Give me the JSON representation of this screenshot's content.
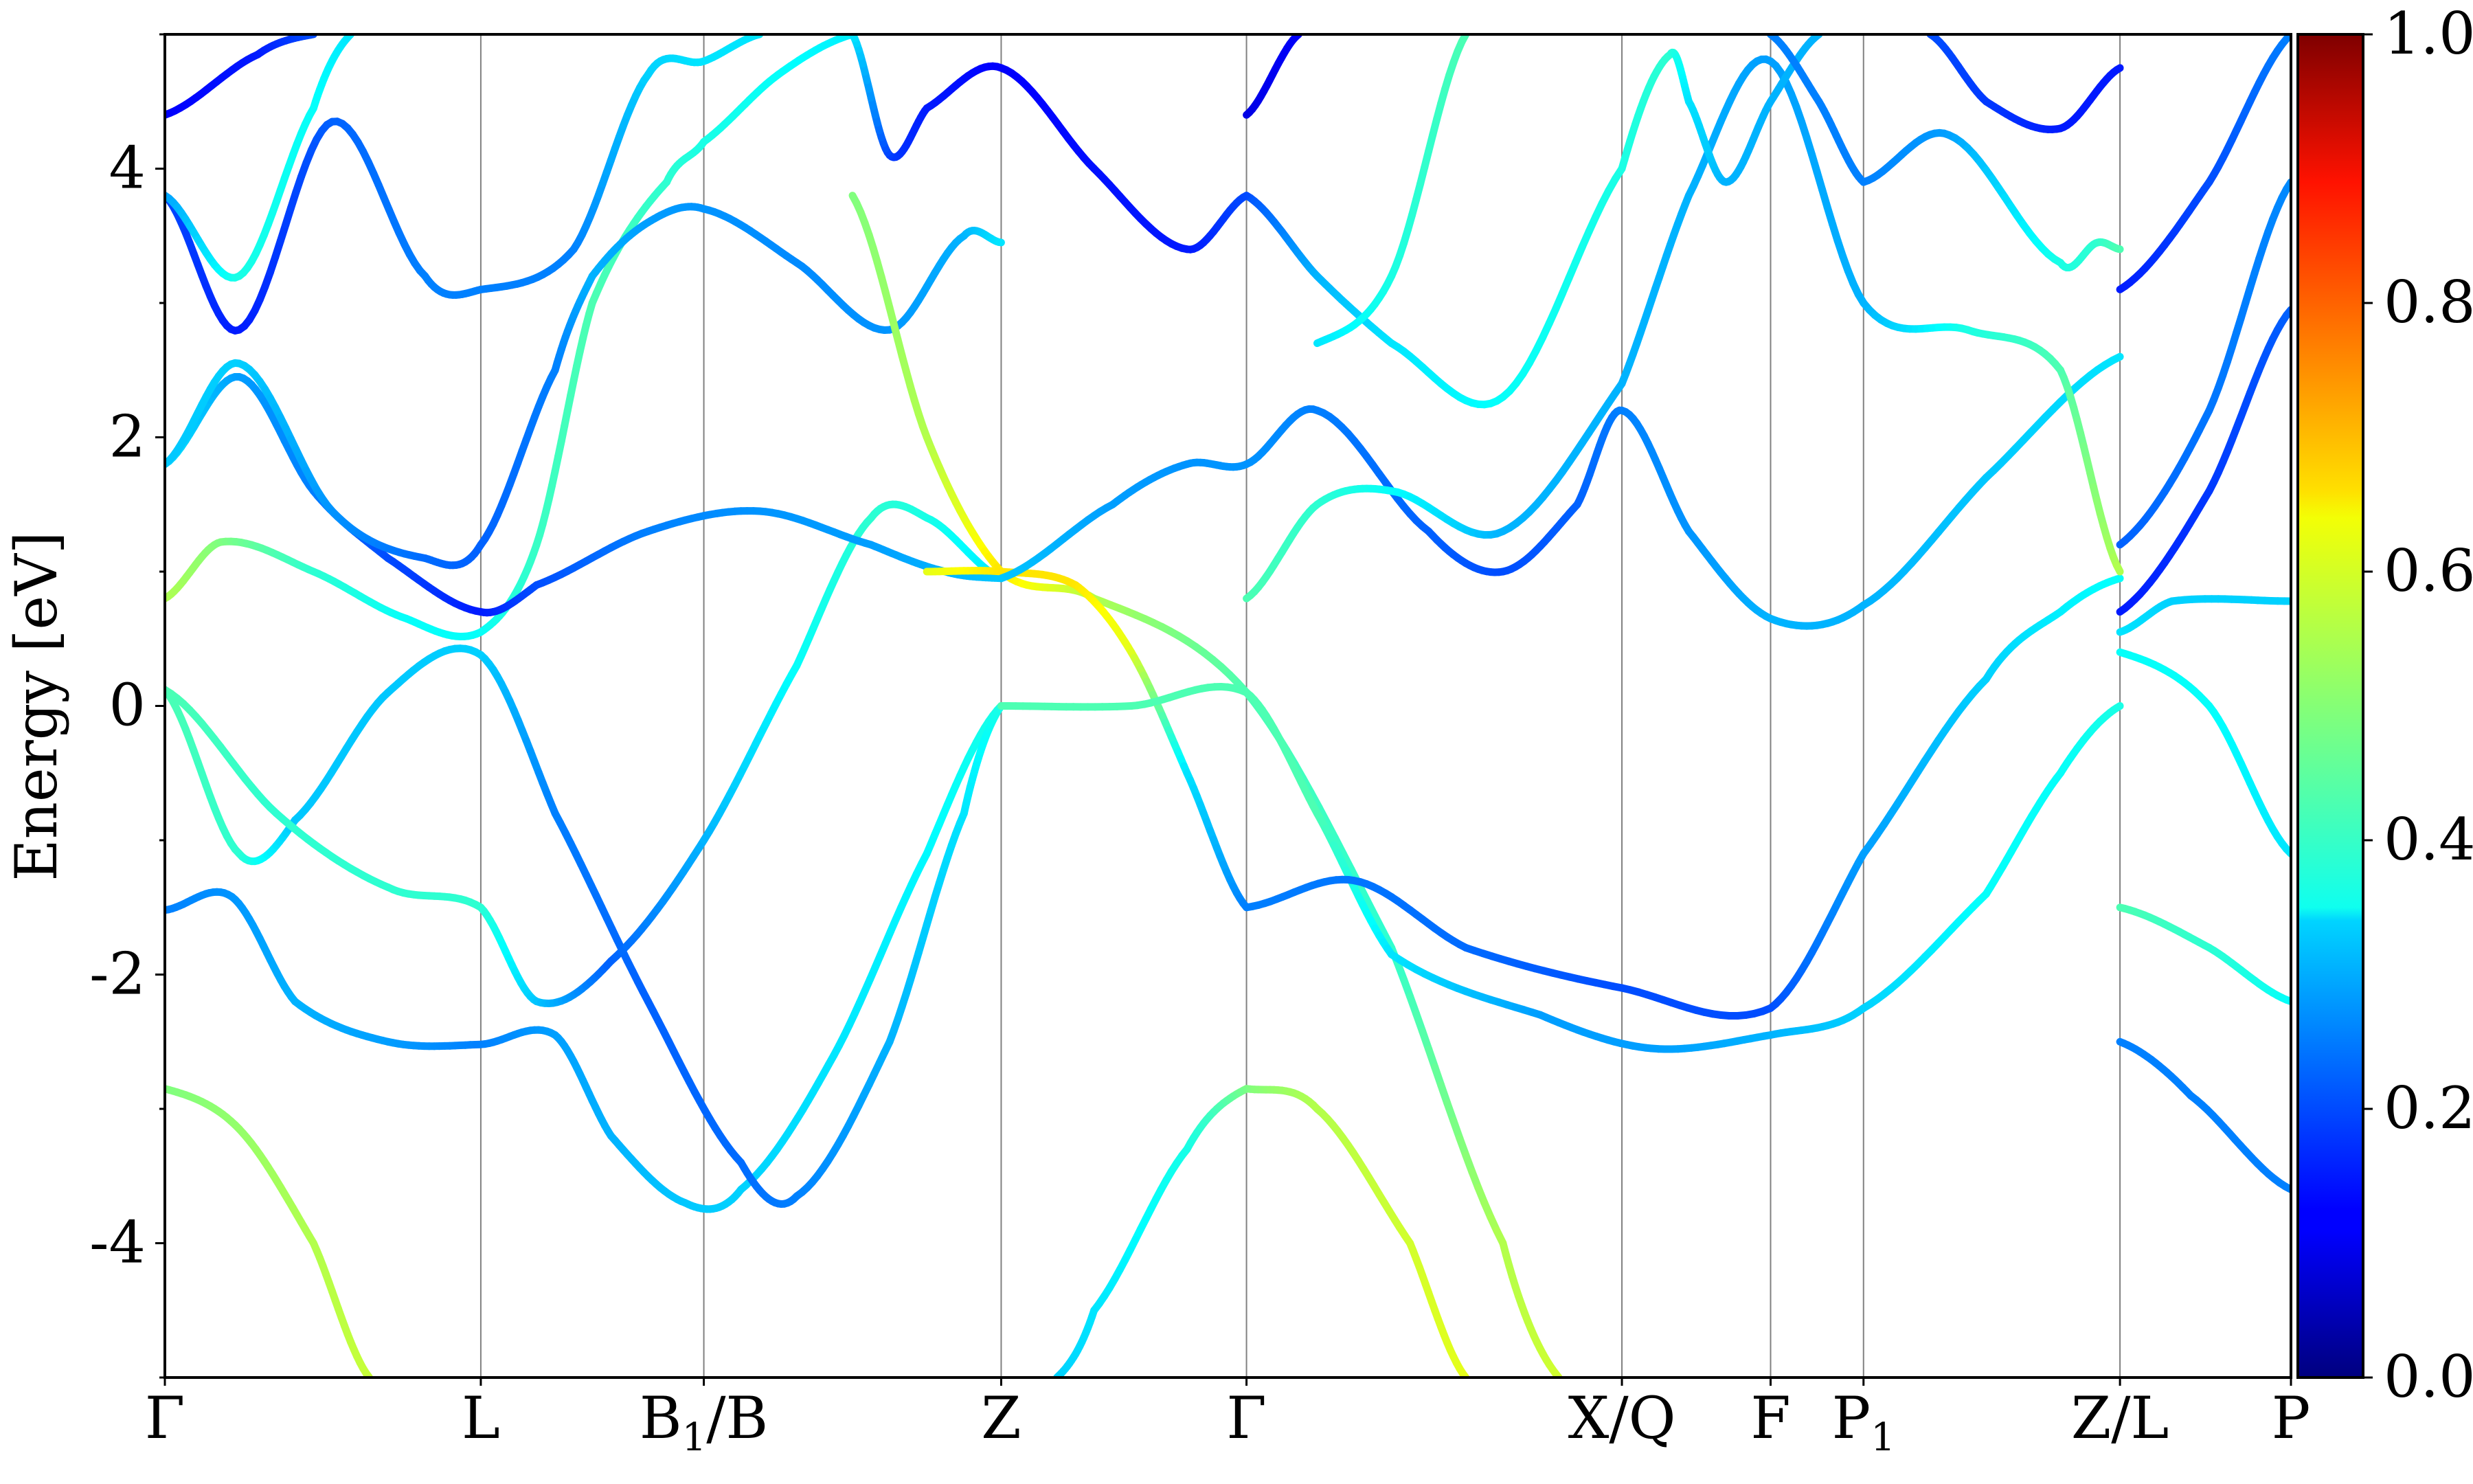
{
  "chart_data": {
    "type": "line",
    "title": "",
    "xlabel": "",
    "ylabel": "Energy [eV]",
    "ylim": [
      -5,
      5
    ],
    "y_ticks": [
      -4,
      -2,
      0,
      2,
      4
    ],
    "y_tick_labels": [
      "-4",
      "-2",
      "0",
      "2",
      "4"
    ],
    "grid": "vertical lines at high-symmetry points",
    "x_range": [
      0,
      5.72
    ],
    "k_points": [
      {
        "label": "Γ",
        "sub": "",
        "suffix": "",
        "x": 0.0
      },
      {
        "label": "L",
        "sub": "",
        "suffix": "",
        "x": 0.85
      },
      {
        "label": "B",
        "sub": "1",
        "suffix": "/B",
        "x": 1.45
      },
      {
        "label": "Z",
        "sub": "",
        "suffix": "",
        "x": 2.25
      },
      {
        "label": "Γ",
        "sub": "",
        "suffix": "",
        "x": 2.91
      },
      {
        "label": "X/Q",
        "sub": "",
        "suffix": "",
        "x": 3.92
      },
      {
        "label": "F",
        "sub": "",
        "suffix": "",
        "x": 4.32
      },
      {
        "label": "P",
        "sub": "1",
        "suffix": "",
        "x": 4.57
      },
      {
        "label": "Z/L",
        "sub": "",
        "suffix": "",
        "x": 5.26
      },
      {
        "label": "P",
        "sub": "",
        "suffix": "",
        "x": 5.72
      }
    ],
    "colorbar": {
      "colormap": "jet",
      "range": [
        0.0,
        1.0
      ],
      "ticks": [
        0.0,
        0.2,
        0.4,
        0.6,
        0.8,
        1.0
      ],
      "tick_labels": [
        "0.0",
        "0.2",
        "0.4",
        "0.6",
        "0.8",
        "1.0"
      ]
    },
    "series": [
      {
        "points": [
          [
            0.0,
            -2.85,
            0.5
          ],
          [
            0.2,
            -3.15,
            0.52
          ],
          [
            0.4,
            -4.0,
            0.55
          ],
          [
            0.55,
            -5.0,
            0.57
          ]
        ]
      },
      {
        "points": [
          [
            0.0,
            -1.52,
            0.25
          ],
          [
            0.18,
            -1.42,
            0.27
          ],
          [
            0.35,
            -2.2,
            0.3
          ],
          [
            0.6,
            -2.5,
            0.28
          ],
          [
            0.85,
            -2.52,
            0.25
          ],
          [
            1.05,
            -2.45,
            0.28
          ],
          [
            1.2,
            -3.2,
            0.3
          ],
          [
            1.4,
            -3.7,
            0.32
          ],
          [
            1.55,
            -3.6,
            0.33
          ],
          [
            1.8,
            -2.6,
            0.35
          ],
          [
            2.05,
            -1.1,
            0.37
          ],
          [
            2.25,
            0.0,
            0.4
          ]
        ]
      },
      {
        "points": [
          [
            0.0,
            0.12,
            0.45
          ],
          [
            0.2,
            -1.1,
            0.42
          ],
          [
            0.35,
            -0.85,
            0.32
          ],
          [
            0.6,
            0.1,
            0.32
          ],
          [
            0.85,
            0.38,
            0.33
          ],
          [
            1.05,
            -0.8,
            0.25
          ],
          [
            1.3,
            -2.2,
            0.22
          ],
          [
            1.55,
            -3.4,
            0.23
          ],
          [
            1.7,
            -3.65,
            0.25
          ],
          [
            1.95,
            -2.5,
            0.3
          ],
          [
            2.15,
            -0.8,
            0.35
          ],
          [
            2.25,
            0.0,
            0.4
          ]
        ]
      },
      {
        "points": [
          [
            0.0,
            0.12,
            0.45
          ],
          [
            0.3,
            -0.8,
            0.42
          ],
          [
            0.6,
            -1.35,
            0.42
          ],
          [
            0.85,
            -1.5,
            0.42
          ],
          [
            1.0,
            -2.2,
            0.32
          ],
          [
            1.2,
            -1.9,
            0.22
          ],
          [
            1.45,
            -1.0,
            0.3
          ],
          [
            1.7,
            0.3,
            0.38
          ],
          [
            1.9,
            1.4,
            0.42
          ],
          [
            2.05,
            1.4,
            0.4
          ],
          [
            2.25,
            0.95,
            0.35
          ]
        ]
      },
      {
        "points": [
          [
            0.0,
            0.8,
            0.55
          ],
          [
            0.15,
            1.22,
            0.5
          ],
          [
            0.4,
            1.0,
            0.42
          ],
          [
            0.65,
            0.65,
            0.38
          ],
          [
            0.85,
            0.55,
            0.38
          ],
          [
            1.0,
            1.2,
            0.43
          ],
          [
            1.15,
            3.0,
            0.45
          ],
          [
            1.35,
            3.9,
            0.42
          ],
          [
            1.45,
            4.2,
            0.4
          ],
          [
            1.65,
            4.7,
            0.38
          ],
          [
            1.85,
            5.0,
            0.36
          ]
        ]
      },
      {
        "points": [
          [
            0.0,
            1.8,
            0.35
          ],
          [
            0.2,
            2.45,
            0.28
          ],
          [
            0.4,
            1.6,
            0.25
          ],
          [
            0.6,
            1.1,
            0.2
          ],
          [
            0.85,
            0.7,
            0.15
          ],
          [
            1.0,
            0.9,
            0.2
          ],
          [
            1.3,
            1.3,
            0.25
          ],
          [
            1.6,
            1.45,
            0.27
          ],
          [
            1.9,
            1.2,
            0.28
          ],
          [
            2.1,
            1.0,
            0.3
          ],
          [
            2.25,
            0.95,
            0.32
          ]
        ]
      },
      {
        "points": [
          [
            0.0,
            1.8,
            0.32
          ],
          [
            0.2,
            2.55,
            0.33
          ],
          [
            0.45,
            1.45,
            0.27
          ],
          [
            0.7,
            1.1,
            0.23
          ],
          [
            0.85,
            1.2,
            0.22
          ],
          [
            1.05,
            2.5,
            0.25
          ],
          [
            1.15,
            3.2,
            0.3
          ],
          [
            1.3,
            3.6,
            0.28
          ],
          [
            1.45,
            3.7,
            0.27
          ],
          [
            1.7,
            3.3,
            0.26
          ],
          [
            1.95,
            2.8,
            0.27
          ],
          [
            2.15,
            3.5,
            0.3
          ],
          [
            2.25,
            3.45,
            0.35
          ]
        ]
      },
      {
        "points": [
          [
            0.0,
            3.8,
            0.2
          ],
          [
            0.2,
            2.8,
            0.15
          ],
          [
            0.45,
            4.35,
            0.22
          ],
          [
            0.7,
            3.2,
            0.25
          ],
          [
            0.85,
            3.1,
            0.25
          ],
          [
            1.1,
            3.4,
            0.25
          ],
          [
            1.3,
            4.7,
            0.33
          ],
          [
            1.45,
            4.8,
            0.35
          ],
          [
            1.6,
            5.0,
            0.35
          ]
        ]
      },
      {
        "points": [
          [
            0.0,
            3.8,
            0.28
          ],
          [
            0.2,
            3.2,
            0.4
          ],
          [
            0.4,
            4.45,
            0.38
          ],
          [
            0.5,
            5.0,
            0.35
          ]
        ]
      },
      {
        "points": [
          [
            0.0,
            4.4,
            0.12
          ],
          [
            0.25,
            4.85,
            0.15
          ],
          [
            0.4,
            5.0,
            0.2
          ]
        ]
      },
      {
        "points": [
          [
            1.85,
            3.8,
            0.5
          ],
          [
            2.05,
            2.0,
            0.55
          ],
          [
            2.25,
            1.0,
            0.65
          ],
          [
            2.5,
            0.8,
            0.55
          ],
          [
            2.91,
            0.1,
            0.45
          ],
          [
            3.3,
            -1.8,
            0.42
          ],
          [
            3.6,
            -4.0,
            0.55
          ],
          [
            3.75,
            -5.0,
            0.58
          ]
        ]
      },
      {
        "points": [
          [
            2.05,
            1.0,
            0.6
          ],
          [
            2.25,
            1.0,
            0.65
          ],
          [
            2.45,
            0.9,
            0.65
          ],
          [
            2.6,
            0.4,
            0.6
          ],
          [
            2.75,
            -0.5,
            0.35
          ],
          [
            2.91,
            -1.5,
            0.25
          ]
        ]
      },
      {
        "points": [
          [
            2.25,
            0.0,
            0.45
          ],
          [
            2.6,
            0.0,
            0.45
          ],
          [
            2.91,
            0.1,
            0.45
          ],
          [
            3.1,
            -0.8,
            0.45
          ],
          [
            3.3,
            -1.85,
            0.35
          ],
          [
            3.7,
            -2.3,
            0.28
          ],
          [
            4.0,
            -2.55,
            0.28
          ],
          [
            4.32,
            -2.45,
            0.3
          ],
          [
            4.57,
            -2.25,
            0.33
          ],
          [
            4.9,
            -1.4,
            0.38
          ],
          [
            5.1,
            -0.5,
            0.38
          ],
          [
            5.26,
            0.0,
            0.4
          ]
        ]
      },
      {
        "points": [
          [
            2.91,
            -1.5,
            0.25
          ],
          [
            3.2,
            -1.3,
            0.24
          ],
          [
            3.5,
            -1.8,
            0.23
          ],
          [
            3.92,
            -2.1,
            0.2
          ],
          [
            4.32,
            -2.25,
            0.2
          ],
          [
            4.57,
            -1.1,
            0.28
          ],
          [
            4.9,
            0.2,
            0.33
          ],
          [
            5.1,
            0.7,
            0.36
          ],
          [
            5.26,
            0.95,
            0.38
          ]
        ]
      },
      {
        "points": [
          [
            2.91,
            -2.85,
            0.5
          ],
          [
            3.1,
            -3.0,
            0.55
          ],
          [
            3.35,
            -4.0,
            0.58
          ],
          [
            3.5,
            -5.0,
            0.6
          ]
        ]
      },
      {
        "points": [
          [
            2.91,
            -2.85,
            0.5
          ],
          [
            2.75,
            -3.3,
            0.4
          ],
          [
            2.5,
            -4.5,
            0.35
          ],
          [
            2.4,
            -5.0,
            0.33
          ]
        ]
      },
      {
        "points": [
          [
            2.25,
            0.95,
            0.32
          ],
          [
            2.55,
            1.5,
            0.28
          ],
          [
            2.75,
            1.8,
            0.27
          ],
          [
            2.91,
            1.8,
            0.27
          ],
          [
            3.1,
            2.2,
            0.25
          ],
          [
            3.4,
            1.3,
            0.22
          ],
          [
            3.6,
            1.0,
            0.2
          ],
          [
            3.8,
            1.5,
            0.22
          ],
          [
            3.92,
            2.2,
            0.25
          ],
          [
            4.1,
            1.3,
            0.27
          ],
          [
            4.32,
            0.65,
            0.3
          ],
          [
            4.57,
            0.75,
            0.3
          ],
          [
            4.9,
            1.7,
            0.32
          ],
          [
            5.26,
            2.6,
            0.35
          ]
        ]
      },
      {
        "points": [
          [
            2.91,
            0.8,
            0.45
          ],
          [
            3.1,
            1.5,
            0.42
          ],
          [
            3.3,
            1.6,
            0.38
          ],
          [
            3.6,
            1.3,
            0.3
          ],
          [
            3.92,
            2.4,
            0.3
          ],
          [
            4.1,
            3.8,
            0.3
          ],
          [
            4.32,
            4.8,
            0.28
          ],
          [
            4.57,
            3.0,
            0.3
          ],
          [
            4.85,
            2.8,
            0.4
          ],
          [
            5.1,
            2.5,
            0.45
          ],
          [
            5.26,
            1.0,
            0.55
          ]
        ]
      },
      {
        "points": [
          [
            2.91,
            3.8,
            0.2
          ],
          [
            3.1,
            3.2,
            0.3
          ],
          [
            3.3,
            2.7,
            0.35
          ],
          [
            3.6,
            2.3,
            0.38
          ],
          [
            3.92,
            4.0,
            0.4
          ],
          [
            4.05,
            4.85,
            0.42
          ],
          [
            4.1,
            4.5,
            0.35
          ],
          [
            4.2,
            3.9,
            0.3
          ],
          [
            4.32,
            4.5,
            0.3
          ],
          [
            4.45,
            5.0,
            0.3
          ]
        ]
      },
      {
        "points": [
          [
            2.91,
            3.8,
            0.2
          ],
          [
            2.75,
            3.4,
            0.15
          ],
          [
            2.5,
            4.0,
            0.14
          ],
          [
            2.25,
            4.75,
            0.12
          ],
          [
            2.05,
            4.45,
            0.15
          ],
          [
            1.95,
            4.1,
            0.18
          ],
          [
            1.85,
            5.0,
            0.35
          ]
        ]
      },
      {
        "points": [
          [
            2.91,
            4.4,
            0.1
          ],
          [
            3.05,
            5.0,
            0.12
          ]
        ]
      },
      {
        "points": [
          [
            3.1,
            2.7,
            0.35
          ],
          [
            3.3,
            3.2,
            0.4
          ],
          [
            3.5,
            5.0,
            0.45
          ]
        ]
      },
      {
        "points": [
          [
            4.57,
            3.9,
            0.25
          ],
          [
            4.8,
            4.25,
            0.28
          ],
          [
            5.1,
            3.3,
            0.4
          ],
          [
            5.2,
            3.45,
            0.42
          ],
          [
            5.26,
            3.4,
            0.45
          ]
        ]
      },
      {
        "points": [
          [
            4.57,
            3.9,
            0.25
          ],
          [
            4.45,
            4.5,
            0.25
          ],
          [
            4.32,
            5.0,
            0.25
          ]
        ]
      },
      {
        "points": [
          [
            5.26,
            4.75,
            0.15
          ],
          [
            5.1,
            4.3,
            0.15
          ],
          [
            4.9,
            4.5,
            0.18
          ],
          [
            4.75,
            5.0,
            0.2
          ]
        ]
      },
      {
        "points": [
          [
            5.26,
            -2.5,
            0.25
          ],
          [
            5.45,
            -2.9,
            0.25
          ],
          [
            5.72,
            -3.6,
            0.25
          ]
        ]
      },
      {
        "points": [
          [
            5.26,
            -1.5,
            0.45
          ],
          [
            5.5,
            -1.8,
            0.42
          ],
          [
            5.72,
            -2.2,
            0.38
          ]
        ]
      },
      {
        "points": [
          [
            5.26,
            0.4,
            0.38
          ],
          [
            5.5,
            0.0,
            0.38
          ],
          [
            5.72,
            -1.1,
            0.35
          ]
        ]
      },
      {
        "points": [
          [
            5.26,
            0.55,
            0.35
          ],
          [
            5.4,
            0.78,
            0.33
          ],
          [
            5.72,
            0.78,
            0.33
          ]
        ]
      },
      {
        "points": [
          [
            5.26,
            0.7,
            0.15
          ],
          [
            5.5,
            1.6,
            0.18
          ],
          [
            5.72,
            2.95,
            0.22
          ]
        ]
      },
      {
        "points": [
          [
            5.26,
            1.2,
            0.22
          ],
          [
            5.5,
            2.2,
            0.24
          ],
          [
            5.72,
            3.9,
            0.26
          ]
        ]
      },
      {
        "points": [
          [
            5.26,
            3.1,
            0.15
          ],
          [
            5.5,
            3.9,
            0.2
          ],
          [
            5.72,
            5.0,
            0.25
          ]
        ]
      }
    ]
  }
}
